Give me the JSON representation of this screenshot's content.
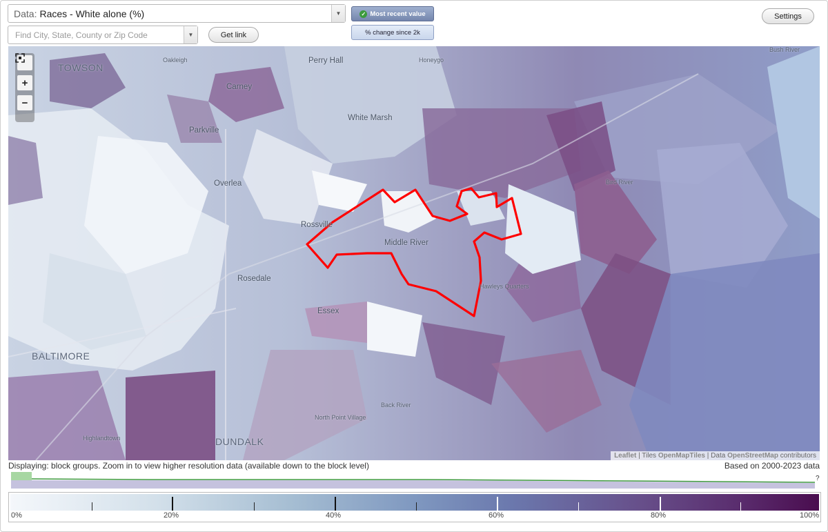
{
  "header": {
    "data_prefix": "Data:",
    "data_value": "Races - White alone (%)",
    "search_placeholder": "Find City, State, County or Zip Code",
    "get_link_label": "Get link",
    "settings_label": "Settings",
    "most_recent_label": "Most recent value",
    "change_label": "% change since 2k"
  },
  "map": {
    "zoom_in": "+",
    "zoom_out": "−",
    "fullscreen_icon": "fullscreen-icon",
    "places": [
      "TOWSON",
      "Oakleigh",
      "Perry Hall",
      "Honeygo",
      "Carney",
      "Parkville",
      "White Marsh",
      "Overlea",
      "Rossville",
      "Middle River",
      "Rosedale",
      "Hawleys Quarters",
      "Essex",
      "BALTIMORE",
      "Back River",
      "North Point Village",
      "DUNDALK",
      "Bird River",
      "Bush River",
      "Highlandtown"
    ],
    "attribution": {
      "leaflet": "Leaflet",
      "tiles_prefix": "Tiles",
      "tiles": "OpenMapTiles",
      "data_prefix": "Data",
      "data": "OpenStreetMap",
      "contributors": "contributors"
    },
    "highlight_color": "#ff0000"
  },
  "status": {
    "displaying": "Displaying: block groups. Zoom in to view higher resolution data (available down to the block level)",
    "based_on": "Based on 2000-2023 data",
    "question": "?"
  },
  "legend": {
    "labels": [
      "0%",
      "20%",
      "40%",
      "60%",
      "80%",
      "100%"
    ],
    "low_color": "#f4f7fb",
    "high_color": "#4a0d4f"
  }
}
